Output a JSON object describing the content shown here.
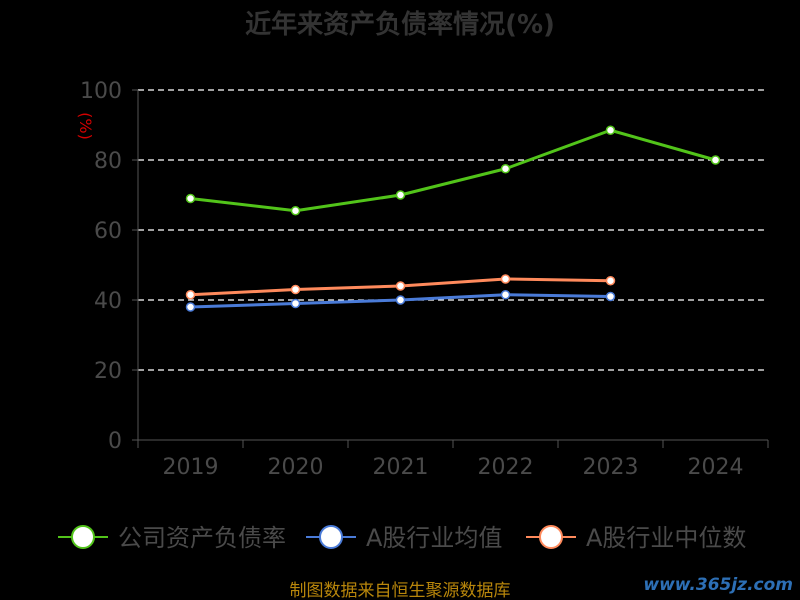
{
  "chart_data": {
    "type": "line",
    "title": "近年来资产负债率情况(%)",
    "ylabel": "(%)",
    "categories": [
      "2019",
      "2020",
      "2021",
      "2022",
      "2023",
      "2024"
    ],
    "ylim": [
      0,
      100
    ],
    "yticks": [
      0,
      20,
      40,
      60,
      80,
      100
    ],
    "grid": true,
    "legend_position": "bottom",
    "series": [
      {
        "name": "公司资产负债率",
        "color": "#52c41a",
        "values": [
          69,
          65.5,
          70,
          77.5,
          88.5,
          80
        ]
      },
      {
        "name": "A股行业均值",
        "color": "#4a7bd8",
        "values": [
          38,
          39,
          40,
          41.5,
          41,
          null
        ]
      },
      {
        "name": "A股行业中位数",
        "color": "#ff8a5c",
        "values": [
          41.5,
          43,
          44,
          46,
          45.5,
          null
        ]
      }
    ]
  },
  "footer": {
    "source": "制图数据来自恒生聚源数据库",
    "watermark": "www.365jz.com"
  }
}
